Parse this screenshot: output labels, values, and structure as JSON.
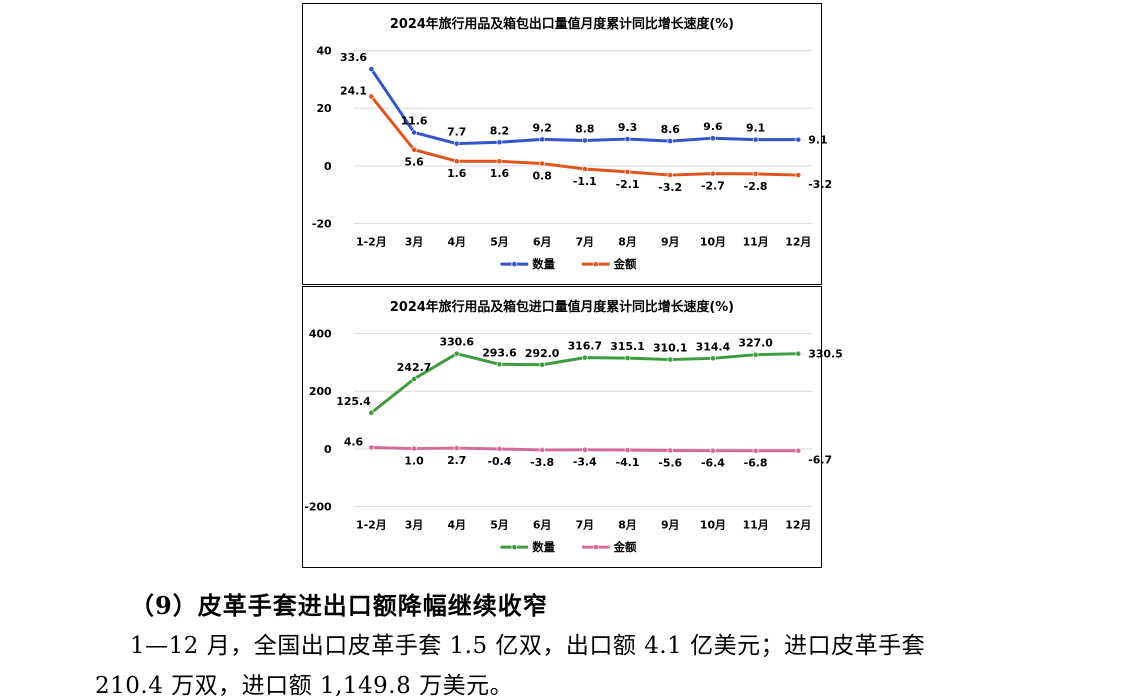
{
  "chart_data": [
    {
      "type": "line",
      "title": "2024年旅行用品及箱包出口量值月度累计同比增长速度(%)",
      "categories": [
        "1-2月",
        "3月",
        "4月",
        "5月",
        "6月",
        "7月",
        "8月",
        "9月",
        "10月",
        "11月",
        "12月"
      ],
      "ylim": [
        -20,
        40
      ],
      "yticks": [
        40,
        20,
        0,
        -20
      ],
      "grid": true,
      "legend": "bottom",
      "series": [
        {
          "name": "数量",
          "color": "#3355cc",
          "labels_position": "above",
          "values": [
            33.6,
            11.6,
            7.7,
            8.2,
            9.2,
            8.8,
            9.3,
            8.6,
            9.6,
            9.1,
            9.1
          ]
        },
        {
          "name": "金额",
          "color": "#e0541e",
          "labels_position": "below",
          "values": [
            24.1,
            5.6,
            1.6,
            1.6,
            0.8,
            -1.1,
            -2.1,
            -3.2,
            -2.7,
            -2.8,
            -3.2
          ]
        }
      ]
    },
    {
      "type": "line",
      "title": "2024年旅行用品及箱包进口量值月度累计同比增长速度(%)",
      "categories": [
        "1-2月",
        "3月",
        "4月",
        "5月",
        "6月",
        "7月",
        "8月",
        "9月",
        "10月",
        "11月",
        "12月"
      ],
      "ylim": [
        -200,
        400
      ],
      "yticks": [
        400,
        200,
        0,
        -200
      ],
      "grid": true,
      "legend": "bottom",
      "series": [
        {
          "name": "数量",
          "color": "#3e9b3e",
          "labels_position": "above",
          "values": [
            125.4,
            242.7,
            330.6,
            293.6,
            292.0,
            316.7,
            315.1,
            310.1,
            314.4,
            327.0,
            330.5
          ]
        },
        {
          "name": "金额",
          "color": "#d46a98",
          "labels_position": "below",
          "values": [
            4.6,
            1.0,
            2.7,
            -0.4,
            -3.8,
            -3.4,
            -4.1,
            -5.6,
            -6.4,
            -6.8,
            -6.7
          ]
        }
      ]
    }
  ],
  "section": {
    "heading": "（9）皮革手套进出口额降幅继续收窄",
    "paragraph_line1": "1—12 月，全国出口皮革手套 1.5 亿双，出口额 4.1 亿美元；进口皮革手套",
    "paragraph_line2": "210.4 万双，进口额 1,149.8 万美元。"
  }
}
